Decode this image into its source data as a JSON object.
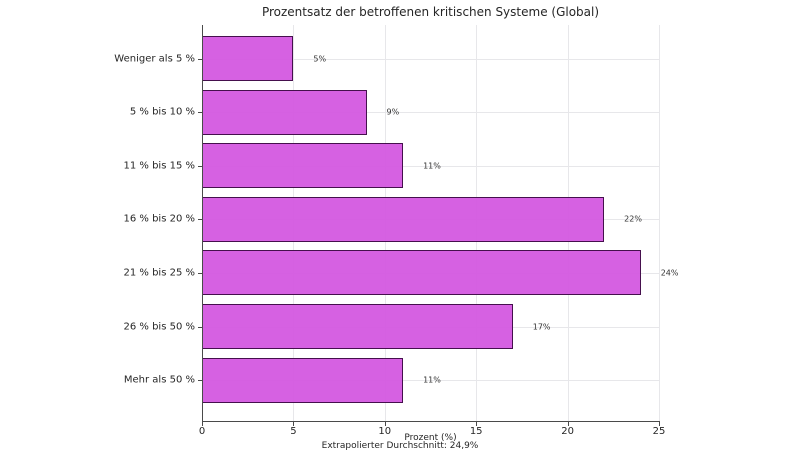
{
  "chart_data": {
    "type": "bar",
    "orientation": "horizontal",
    "title": "Prozentsatz der betroffenen kritischen Systeme (Global)",
    "categories": [
      "Weniger als 5 %",
      "5 % bis 10 %",
      "11 % bis 15 %",
      "16 % bis 20 %",
      "21 % bis 25 %",
      "26 % bis 50 %",
      "Mehr als 50 %"
    ],
    "values": [
      5,
      9,
      11,
      22,
      24,
      17,
      11
    ],
    "value_labels": [
      "5%",
      "9%",
      "11%",
      "22%",
      "24%",
      "17%",
      "11%"
    ],
    "xlabel": "Prozent (%)",
    "footnote": "Extrapolierter Durchschnitt: 24,9%",
    "xlim": [
      0,
      25
    ],
    "xticks": [
      0,
      5,
      10,
      15,
      20,
      25
    ],
    "grid": true,
    "legend": false,
    "colors": {
      "bar_fill": "#d355e0",
      "bar_edge": "#45104d",
      "grid": "#e7e7ea",
      "axis": "#4a4a4a",
      "text": "#262626"
    }
  }
}
